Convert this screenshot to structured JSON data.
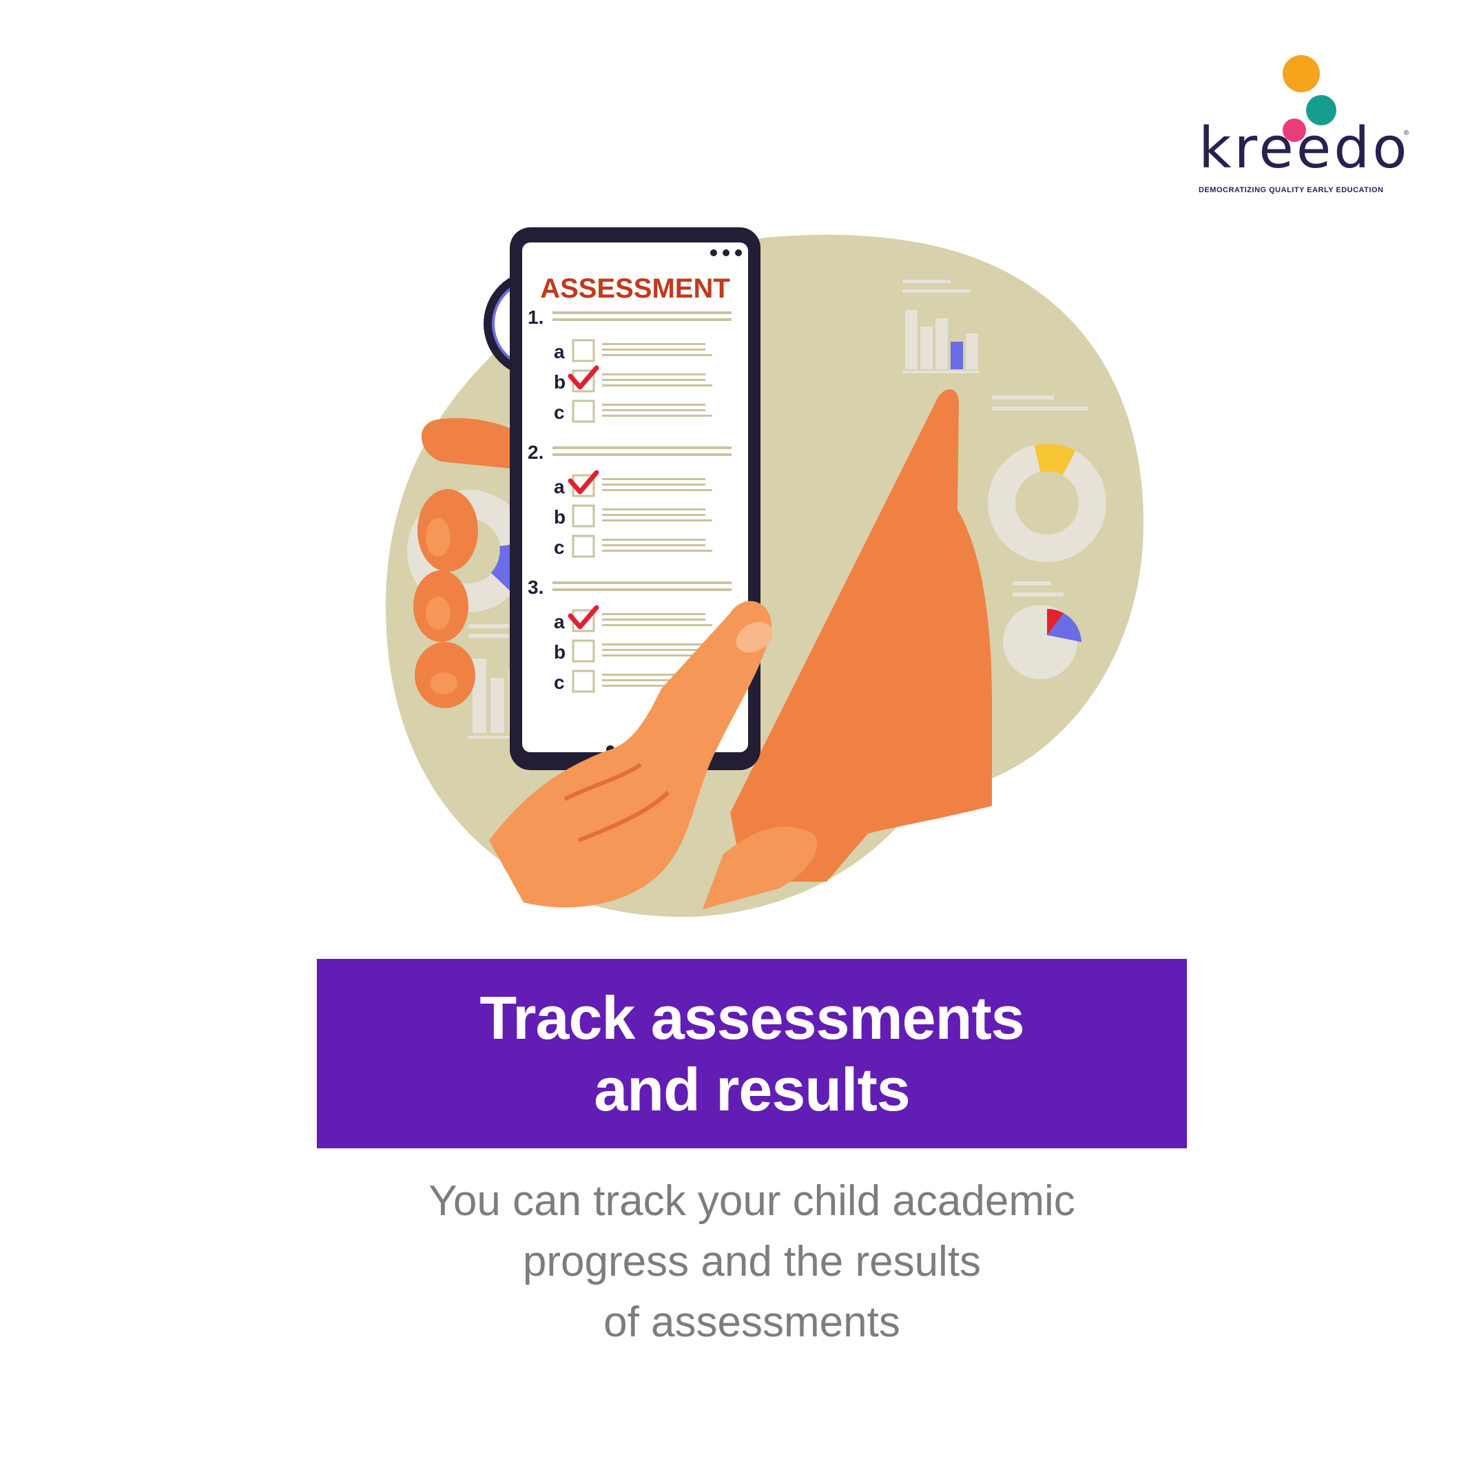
{
  "logo": {
    "wordmark": "kreedo",
    "registered": "®",
    "tagline": "DEMOCRATIZING QUALITY EARLY EDUCATION",
    "dot_colors": [
      "#f4a51c",
      "#e93d7a",
      "#159e8e"
    ]
  },
  "illustration": {
    "screen_title": "ASSESSMENT",
    "questions": [
      {
        "number": "1.",
        "options": [
          {
            "label": "a",
            "checked": false
          },
          {
            "label": "b",
            "checked": true
          },
          {
            "label": "c",
            "checked": false
          }
        ]
      },
      {
        "number": "2.",
        "options": [
          {
            "label": "a",
            "checked": true
          },
          {
            "label": "b",
            "checked": false
          },
          {
            "label": "c",
            "checked": false
          }
        ]
      },
      {
        "number": "3.",
        "options": [
          {
            "label": "a",
            "checked": true
          },
          {
            "label": "b",
            "checked": false
          },
          {
            "label": "c",
            "checked": false
          }
        ]
      }
    ],
    "icons": [
      "clock-icon",
      "pie-chart-icon",
      "donut-chart-icon",
      "bar-chart-icon",
      "smartphone-icon",
      "hand-icon",
      "checkmark-icon"
    ],
    "colors": {
      "backdrop": "#d7d1ac",
      "phone_frame": "#231d36",
      "screen": "#ffffff",
      "title": "#c03a1c",
      "hand": "#ef8144",
      "hand_front": "#f59756",
      "check": "#e0212e",
      "accent_blue": "#6b6de6",
      "accent_yellow": "#f7c531",
      "accent_red": "#e3232b",
      "chart_grey": "#e6e2d8"
    }
  },
  "banner": {
    "line1": "Track assessments",
    "line2": "and results",
    "background": "#621db4"
  },
  "description": {
    "line1": "You can track your child academic",
    "line2": "progress and the results",
    "line3": "of assessments"
  }
}
